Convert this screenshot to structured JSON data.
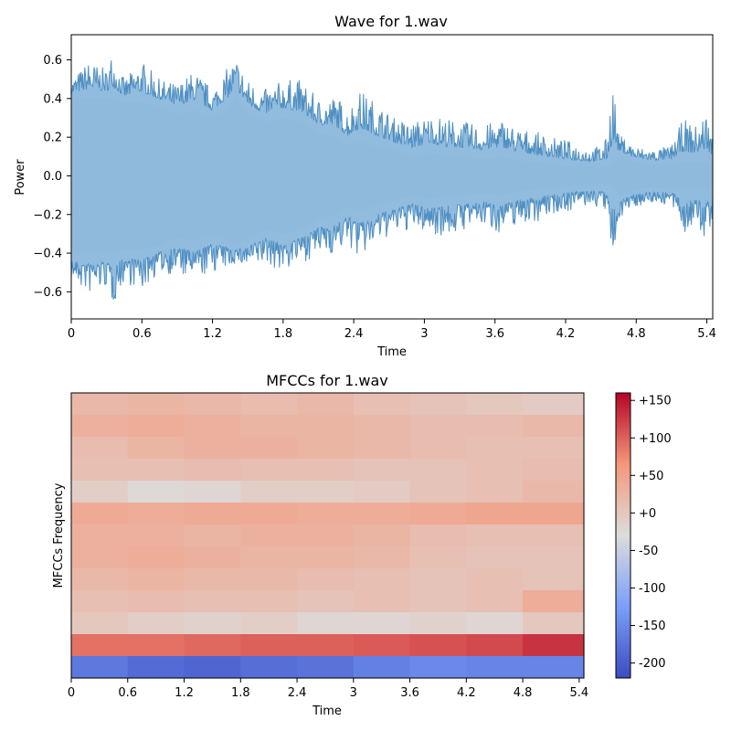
{
  "chart_data": [
    {
      "type": "area",
      "title": "Wave for 1.wav",
      "xlabel": "Time",
      "ylabel": "Power",
      "xlim": [
        0,
        5.45
      ],
      "ylim": [
        -0.74,
        0.73
      ],
      "xticks": [
        "0",
        "0.6",
        "1.2",
        "1.8",
        "2.4",
        "3",
        "3.6",
        "4.2",
        "4.8",
        "5.4"
      ],
      "yticks": [
        "−0.6",
        "−0.4",
        "−0.2",
        "0.0",
        "0.2",
        "0.4",
        "0.6"
      ],
      "color": "#1f77b4",
      "envelope": {
        "time": [
          0,
          0.15,
          0.3,
          0.35,
          0.45,
          0.6,
          0.75,
          0.9,
          1.05,
          1.2,
          1.35,
          1.4,
          1.5,
          1.65,
          1.8,
          1.95,
          2.1,
          2.25,
          2.35,
          2.45,
          2.6,
          2.75,
          2.9,
          3.05,
          3.2,
          3.35,
          3.5,
          3.65,
          3.8,
          3.95,
          4.1,
          4.25,
          4.4,
          4.5,
          4.55,
          4.6,
          4.65,
          4.8,
          4.95,
          5.1,
          5.2,
          5.3,
          5.4,
          5.45
        ],
        "peak_max": [
          0.5,
          0.6,
          0.55,
          0.66,
          0.5,
          0.6,
          0.5,
          0.48,
          0.55,
          0.45,
          0.58,
          0.62,
          0.5,
          0.45,
          0.5,
          0.5,
          0.4,
          0.42,
          0.35,
          0.45,
          0.38,
          0.3,
          0.28,
          0.32,
          0.3,
          0.28,
          0.26,
          0.3,
          0.25,
          0.23,
          0.2,
          0.18,
          0.15,
          0.16,
          0.2,
          0.56,
          0.22,
          0.15,
          0.14,
          0.16,
          0.3,
          0.26,
          0.35,
          0.2
        ],
        "peak_min": [
          -0.55,
          -0.62,
          -0.58,
          -0.68,
          -0.55,
          -0.6,
          -0.5,
          -0.52,
          -0.55,
          -0.5,
          -0.48,
          -0.45,
          -0.5,
          -0.46,
          -0.5,
          -0.45,
          -0.42,
          -0.4,
          -0.36,
          -0.44,
          -0.35,
          -0.3,
          -0.28,
          -0.3,
          -0.32,
          -0.28,
          -0.26,
          -0.3,
          -0.25,
          -0.24,
          -0.2,
          -0.18,
          -0.16,
          -0.17,
          -0.2,
          -0.56,
          -0.22,
          -0.16,
          -0.14,
          -0.16,
          -0.3,
          -0.28,
          -0.35,
          -0.22
        ],
        "body_max": [
          0.4,
          0.4,
          0.4,
          0.4,
          0.38,
          0.38,
          0.36,
          0.32,
          0.34,
          0.3,
          0.36,
          0.4,
          0.32,
          0.28,
          0.3,
          0.28,
          0.22,
          0.2,
          0.16,
          0.18,
          0.15,
          0.13,
          0.1,
          0.12,
          0.1,
          0.1,
          0.09,
          0.1,
          0.08,
          0.07,
          0.06,
          0.05,
          0.05,
          0.05,
          0.05,
          0.05,
          0.1,
          0.07,
          0.06,
          0.06,
          0.07,
          0.07,
          0.07,
          0.06
        ],
        "body_min": [
          -0.4,
          -0.4,
          -0.4,
          -0.4,
          -0.38,
          -0.38,
          -0.36,
          -0.32,
          -0.34,
          -0.3,
          -0.34,
          -0.36,
          -0.32,
          -0.28,
          -0.3,
          -0.28,
          -0.22,
          -0.2,
          -0.16,
          -0.18,
          -0.15,
          -0.13,
          -0.1,
          -0.12,
          -0.1,
          -0.1,
          -0.09,
          -0.1,
          -0.08,
          -0.07,
          -0.06,
          -0.05,
          -0.05,
          -0.05,
          -0.05,
          -0.05,
          -0.1,
          -0.07,
          -0.06,
          -0.06,
          -0.07,
          -0.07,
          -0.07,
          -0.06
        ]
      }
    },
    {
      "type": "heatmap",
      "title": "MFCCs for 1.wav",
      "xlabel": "Time",
      "ylabel": "MFCCs Frequency",
      "xlim": [
        0,
        5.45
      ],
      "xticks": [
        "0",
        "0.6",
        "1.2",
        "1.8",
        "2.4",
        "3",
        "3.6",
        "4.2",
        "4.8",
        "5.4"
      ],
      "colormap": "coolwarm",
      "vmin": -220,
      "vmax": 160,
      "colorbar_ticks": [
        "+150",
        "+100",
        "+50",
        "+0",
        "-50",
        "-100",
        "-150",
        "-200"
      ],
      "segment_times": [
        0,
        0.6,
        1.2,
        1.8,
        2.4,
        3.0,
        3.6,
        4.2,
        4.8,
        5.45
      ],
      "coefficients_top_to_bottom": [
        [
          20,
          25,
          20,
          15,
          20,
          10,
          5,
          0,
          -5
        ],
        [
          30,
          35,
          30,
          25,
          25,
          20,
          15,
          15,
          20
        ],
        [
          15,
          25,
          30,
          30,
          25,
          20,
          15,
          10,
          10
        ],
        [
          10,
          10,
          15,
          10,
          10,
          5,
          5,
          10,
          15
        ],
        [
          -10,
          -25,
          -20,
          -10,
          -10,
          -5,
          5,
          10,
          20
        ],
        [
          40,
          35,
          40,
          40,
          35,
          35,
          40,
          45,
          45
        ],
        [
          30,
          30,
          25,
          30,
          30,
          25,
          15,
          10,
          10
        ],
        [
          30,
          35,
          30,
          25,
          25,
          20,
          10,
          5,
          5
        ],
        [
          20,
          25,
          20,
          20,
          15,
          10,
          5,
          10,
          5
        ],
        [
          10,
          15,
          10,
          10,
          5,
          10,
          5,
          10,
          35
        ],
        [
          0,
          -10,
          -15,
          -10,
          -20,
          -20,
          -15,
          -20,
          0
        ],
        [
          90,
          90,
          95,
          100,
          100,
          105,
          110,
          115,
          130
        ],
        [
          -170,
          -185,
          -190,
          -180,
          -175,
          -160,
          -150,
          -155,
          -155
        ]
      ]
    }
  ]
}
